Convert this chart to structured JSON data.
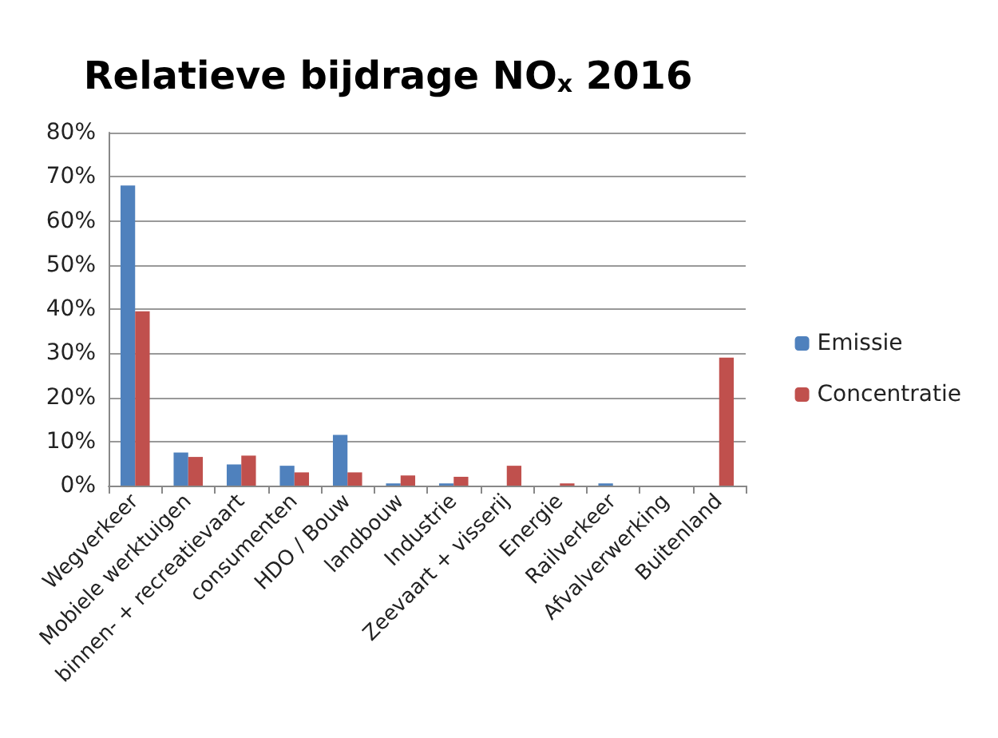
{
  "chart_data": {
    "type": "bar",
    "title": "Relatieve bijdrage NO$_{x}$ 2016",
    "categories": [
      "Wegverkeer",
      "Mobiele werktuigen",
      "binnen- + recreatievaart",
      "consumenten",
      "HDO / Bouw",
      "landbouw",
      "Industrie",
      "Zeevaart + visserij",
      "Energie",
      "Railverkeer",
      "Afvalverwerking",
      "Buitenland"
    ],
    "series": [
      {
        "name": "Emissie",
        "color": "#4f81bd",
        "values": [
          68,
          7.5,
          4.8,
          4.5,
          11.5,
          0.5,
          0.5,
          0,
          null,
          0.5,
          0,
          0
        ]
      },
      {
        "name": "Concentratie",
        "color": "#c0504d",
        "values": [
          39.5,
          6.5,
          6.8,
          3,
          3,
          2.3,
          2,
          4.5,
          0.5,
          null,
          0,
          29
        ]
      }
    ],
    "ylim": [
      0,
      80
    ],
    "yticks": [
      {
        "value": 0,
        "label": "0%"
      },
      {
        "value": 10,
        "label": "10%"
      },
      {
        "value": 20,
        "label": "20%"
      },
      {
        "value": 30,
        "label": "30%"
      },
      {
        "value": 40,
        "label": "40%"
      },
      {
        "value": 50,
        "label": "50%"
      },
      {
        "value": 60,
        "label": "60%"
      },
      {
        "value": 70,
        "label": "70%"
      },
      {
        "value": 80,
        "label": "80%"
      }
    ],
    "grid": "y",
    "legend": "right"
  }
}
